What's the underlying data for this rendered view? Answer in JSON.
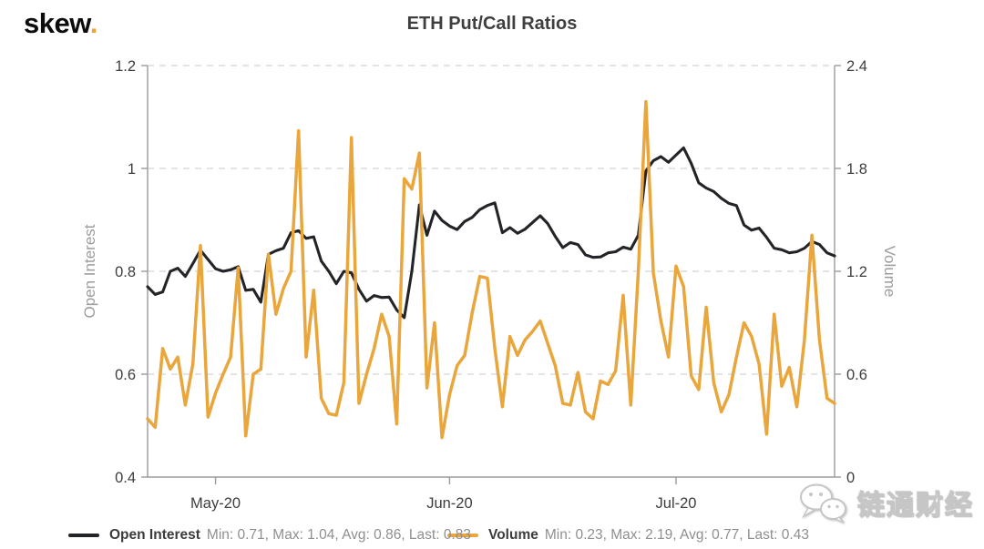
{
  "header": {
    "logo_text": "skew",
    "logo_dot": ".",
    "title": "ETH Put/Call Ratios"
  },
  "colors": {
    "open_interest": "#232428",
    "volume": "#E9A63C",
    "grid": "#DBDBDB",
    "axis": "#9B9B9B",
    "tick_label": "#3D3D3D",
    "axis_title": "#9C9C9C",
    "title": "#3F3F3F",
    "legend_label": "#3C3C3C",
    "legend_stats": "#8F8F8F",
    "logo_dot": "#E9A63C"
  },
  "legend": {
    "items": [
      {
        "label": "Open Interest",
        "stats": "Min: 0.71, Max: 1.04, Avg: 0.86, Last: 0.83",
        "color": "#232428"
      },
      {
        "label": "Volume",
        "stats": "Min: 0.23, Max: 2.19, Avg: 0.77, Last: 0.43",
        "color": "#E9A63C"
      }
    ]
  },
  "watermark": {
    "text": "链通财经",
    "icon": "wechat-icon"
  },
  "chart_data": {
    "type": "line",
    "title": "ETH Put/Call Ratios",
    "grid": "horizontal-dashed",
    "legend_position": "bottom",
    "x_axis": {
      "tick_labels": [
        "May-20",
        "Jun-20",
        "Jul-20"
      ],
      "tick_dates": [
        "2020-05-01",
        "2020-06-01",
        "2020-07-01"
      ]
    },
    "y_left": {
      "label": "Open Interest",
      "range": [
        0.4,
        1.2
      ],
      "ticks": [
        "1.2",
        "1",
        "0.8",
        "0.6",
        "0.4"
      ],
      "tick_values": [
        1.2,
        1.0,
        0.8,
        0.6,
        0.4
      ]
    },
    "y_right": {
      "label": "Volume",
      "range": [
        0,
        2.4
      ],
      "ticks": [
        "2.4",
        "1.8",
        "1.2",
        "0.6",
        "0"
      ],
      "tick_values": [
        2.4,
        1.8,
        1.2,
        0.6,
        0
      ]
    },
    "dates": [
      "2020-04-22",
      "2020-04-23",
      "2020-04-24",
      "2020-04-25",
      "2020-04-26",
      "2020-04-27",
      "2020-04-28",
      "2020-04-29",
      "2020-04-30",
      "2020-05-01",
      "2020-05-02",
      "2020-05-03",
      "2020-05-04",
      "2020-05-05",
      "2020-05-06",
      "2020-05-07",
      "2020-05-08",
      "2020-05-09",
      "2020-05-10",
      "2020-05-11",
      "2020-05-12",
      "2020-05-13",
      "2020-05-14",
      "2020-05-15",
      "2020-05-16",
      "2020-05-17",
      "2020-05-18",
      "2020-05-19",
      "2020-05-20",
      "2020-05-21",
      "2020-05-22",
      "2020-05-23",
      "2020-05-24",
      "2020-05-25",
      "2020-05-26",
      "2020-05-27",
      "2020-05-28",
      "2020-05-29",
      "2020-05-30",
      "2020-05-31",
      "2020-06-01",
      "2020-06-02",
      "2020-06-03",
      "2020-06-04",
      "2020-06-05",
      "2020-06-06",
      "2020-06-07",
      "2020-06-08",
      "2020-06-09",
      "2020-06-10",
      "2020-06-11",
      "2020-06-12",
      "2020-06-13",
      "2020-06-14",
      "2020-06-15",
      "2020-06-16",
      "2020-06-17",
      "2020-06-18",
      "2020-06-19",
      "2020-06-20",
      "2020-06-21",
      "2020-06-22",
      "2020-06-23",
      "2020-06-24",
      "2020-06-25",
      "2020-06-26",
      "2020-06-27",
      "2020-06-28",
      "2020-06-29",
      "2020-06-30",
      "2020-07-01",
      "2020-07-02",
      "2020-07-03",
      "2020-07-04",
      "2020-07-05",
      "2020-07-06",
      "2020-07-07",
      "2020-07-08",
      "2020-07-09",
      "2020-07-10",
      "2020-07-11",
      "2020-07-12",
      "2020-07-13",
      "2020-07-14",
      "2020-07-15",
      "2020-07-16",
      "2020-07-17",
      "2020-07-18",
      "2020-07-19",
      "2020-07-20",
      "2020-07-21",
      "2020-07-22"
    ],
    "series": [
      {
        "name": "Open Interest",
        "axis": "left",
        "color": "#232428",
        "stats": {
          "min": 0.71,
          "max": 1.04,
          "avg": 0.86,
          "last": 0.83
        },
        "values": [
          0.77,
          0.755,
          0.76,
          0.8,
          0.806,
          0.79,
          0.815,
          0.841,
          0.823,
          0.805,
          0.8,
          0.803,
          0.809,
          0.763,
          0.765,
          0.74,
          0.833,
          0.84,
          0.845,
          0.875,
          0.879,
          0.864,
          0.867,
          0.82,
          0.8,
          0.776,
          0.8,
          0.797,
          0.765,
          0.742,
          0.753,
          0.749,
          0.75,
          0.725,
          0.71,
          0.8,
          0.929,
          0.87,
          0.917,
          0.899,
          0.888,
          0.881,
          0.897,
          0.905,
          0.92,
          0.928,
          0.933,
          0.875,
          0.885,
          0.874,
          0.882,
          0.895,
          0.908,
          0.893,
          0.868,
          0.846,
          0.856,
          0.852,
          0.832,
          0.827,
          0.828,
          0.836,
          0.838,
          0.847,
          0.843,
          0.87,
          0.995,
          1.015,
          1.023,
          1.012,
          1.026,
          1.04,
          1.01,
          0.972,
          0.962,
          0.955,
          0.942,
          0.932,
          0.928,
          0.89,
          0.88,
          0.884,
          0.866,
          0.845,
          0.842,
          0.836,
          0.838,
          0.845,
          0.858,
          0.852,
          0.836,
          0.83
        ]
      },
      {
        "name": "Volume",
        "axis": "right",
        "color": "#E9A63C",
        "stats": {
          "min": 0.23,
          "max": 2.19,
          "avg": 0.77,
          "last": 0.43
        },
        "values": [
          0.34,
          0.29,
          0.75,
          0.63,
          0.7,
          0.42,
          0.66,
          1.35,
          0.35,
          0.49,
          0.6,
          0.7,
          1.22,
          0.24,
          0.6,
          0.63,
          1.3,
          0.95,
          1.1,
          1.2,
          2.02,
          0.7,
          1.09,
          0.46,
          0.37,
          0.36,
          0.55,
          1.98,
          0.43,
          0.6,
          0.75,
          0.95,
          0.82,
          0.31,
          1.74,
          1.68,
          1.89,
          0.52,
          0.9,
          0.23,
          0.48,
          0.65,
          0.71,
          0.96,
          1.17,
          1.16,
          0.75,
          0.41,
          0.82,
          0.71,
          0.8,
          0.85,
          0.91,
          0.78,
          0.65,
          0.43,
          0.42,
          0.61,
          0.38,
          0.34,
          0.56,
          0.54,
          0.62,
          1.06,
          0.42,
          1.2,
          2.19,
          1.19,
          0.91,
          0.7,
          1.23,
          1.11,
          0.59,
          0.51,
          0.99,
          0.55,
          0.38,
          0.48,
          0.7,
          0.9,
          0.82,
          0.66,
          0.25,
          0.95,
          0.53,
          0.64,
          0.41,
          0.8,
          1.41,
          0.8,
          0.46,
          0.43
        ]
      }
    ]
  }
}
